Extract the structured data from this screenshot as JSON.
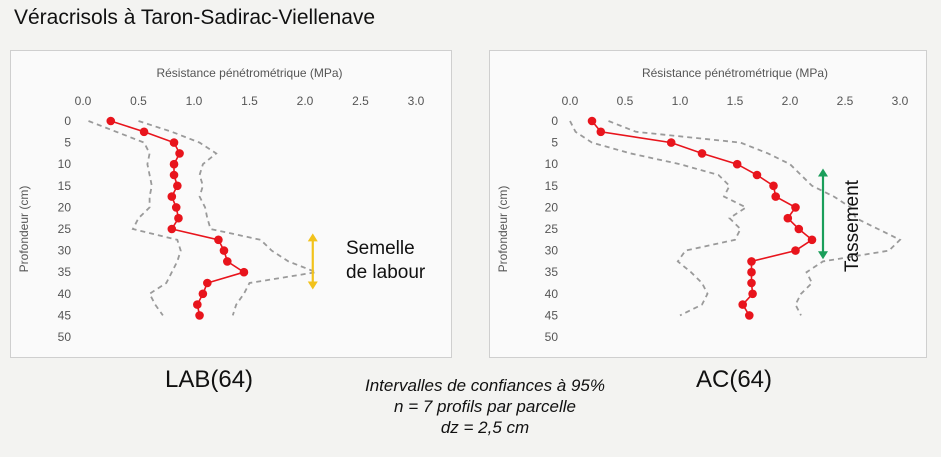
{
  "title": "Véracrisols à Taron-Sadirac-Viellenave",
  "note": {
    "line1": "Intervalles de confiances à 95%",
    "line2": "n = 7 profils par parcelle",
    "line3": "dz = 2,5 cm"
  },
  "colors": {
    "mean": "#e8141c",
    "ci": "#9a9a9a",
    "semelle_arrow": "#f2c21b",
    "tassement_arrow": "#1a9e5a"
  },
  "chart_data": [
    {
      "type": "line",
      "caption": "LAB(64)",
      "xlabel": "Résistance pénétrométrique (MPa)",
      "ylabel": "Profondeur (cm)",
      "x_axis_position": "top",
      "xlim": [
        0,
        3
      ],
      "ylim": [
        0,
        50
      ],
      "y_inverted": true,
      "x_ticks": [
        "0.0",
        "0.5",
        "1.0",
        "1.5",
        "2.0",
        "2.5",
        "3.0"
      ],
      "y_ticks": [
        "0",
        "5",
        "10",
        "15",
        "20",
        "25",
        "30",
        "35",
        "40",
        "45",
        "50"
      ],
      "grid": false,
      "series": [
        {
          "role": "mean",
          "style": "solid-dots",
          "points": [
            [
              0.25,
              0
            ],
            [
              0.55,
              2.5
            ],
            [
              0.82,
              5
            ],
            [
              0.87,
              7.5
            ],
            [
              0.82,
              10
            ],
            [
              0.82,
              12.5
            ],
            [
              0.85,
              15
            ],
            [
              0.8,
              17.5
            ],
            [
              0.84,
              20
            ],
            [
              0.86,
              22.5
            ],
            [
              0.8,
              25
            ],
            [
              1.22,
              27.5
            ],
            [
              1.27,
              30
            ],
            [
              1.3,
              32.5
            ],
            [
              1.45,
              35
            ],
            [
              1.12,
              37.5
            ],
            [
              1.08,
              40
            ],
            [
              1.03,
              42.5
            ],
            [
              1.05,
              45
            ]
          ]
        },
        {
          "role": "upper",
          "style": "dashed",
          "points": [
            [
              0.5,
              0
            ],
            [
              0.8,
              2.5
            ],
            [
              1.05,
              5
            ],
            [
              1.2,
              7.5
            ],
            [
              1.08,
              10
            ],
            [
              1.05,
              12.5
            ],
            [
              1.08,
              15
            ],
            [
              1.05,
              17.5
            ],
            [
              1.1,
              20
            ],
            [
              1.12,
              22.5
            ],
            [
              1.15,
              25
            ],
            [
              1.6,
              27.5
            ],
            [
              1.7,
              30
            ],
            [
              1.85,
              32.5
            ],
            [
              2.1,
              35
            ],
            [
              1.5,
              37.5
            ],
            [
              1.45,
              40
            ],
            [
              1.38,
              42.5
            ],
            [
              1.35,
              45
            ]
          ]
        },
        {
          "role": "lower",
          "style": "dashed",
          "points": [
            [
              0.05,
              0
            ],
            [
              0.3,
              2.5
            ],
            [
              0.55,
              5
            ],
            [
              0.6,
              7.5
            ],
            [
              0.58,
              10
            ],
            [
              0.6,
              12.5
            ],
            [
              0.62,
              15
            ],
            [
              0.6,
              17.5
            ],
            [
              0.6,
              20
            ],
            [
              0.5,
              22.5
            ],
            [
              0.45,
              25
            ],
            [
              0.85,
              27.5
            ],
            [
              0.88,
              30
            ],
            [
              0.85,
              32.5
            ],
            [
              0.8,
              35
            ],
            [
              0.75,
              37.5
            ],
            [
              0.6,
              40
            ],
            [
              0.65,
              42.5
            ],
            [
              0.72,
              45
            ]
          ]
        }
      ],
      "annotation": {
        "lines": [
          "Semelle",
          "de labour"
        ],
        "arrow_from_depth": 26,
        "arrow_to_depth": 39,
        "arrow_x": 2.07
      }
    },
    {
      "type": "line",
      "caption": "AC(64)",
      "xlabel": "Résistance pénétrométrique (MPa)",
      "ylabel": "Profondeur (cm)",
      "x_axis_position": "top",
      "xlim": [
        0,
        3
      ],
      "ylim": [
        0,
        50
      ],
      "y_inverted": true,
      "x_ticks": [
        "0.0",
        "0.5",
        "1.0",
        "1.5",
        "2.0",
        "2.5",
        "3.0"
      ],
      "y_ticks": [
        "0",
        "5",
        "10",
        "15",
        "20",
        "25",
        "30",
        "35",
        "40",
        "45",
        "50"
      ],
      "grid": false,
      "series": [
        {
          "role": "mean",
          "style": "solid-dots",
          "points": [
            [
              0.2,
              0
            ],
            [
              0.28,
              2.5
            ],
            [
              0.92,
              5
            ],
            [
              1.2,
              7.5
            ],
            [
              1.52,
              10
            ],
            [
              1.7,
              12.5
            ],
            [
              1.85,
              15
            ],
            [
              1.87,
              17.5
            ],
            [
              2.05,
              20
            ],
            [
              1.98,
              22.5
            ],
            [
              2.08,
              25
            ],
            [
              2.2,
              27.5
            ],
            [
              2.05,
              30
            ],
            [
              1.65,
              32.5
            ],
            [
              1.65,
              35
            ],
            [
              1.65,
              37.5
            ],
            [
              1.66,
              40
            ],
            [
              1.57,
              42.5
            ],
            [
              1.63,
              45
            ]
          ]
        },
        {
          "role": "upper",
          "style": "dashed",
          "points": [
            [
              0.35,
              0
            ],
            [
              0.6,
              2.5
            ],
            [
              1.55,
              5
            ],
            [
              1.8,
              7.5
            ],
            [
              2.0,
              10
            ],
            [
              2.1,
              12.5
            ],
            [
              2.2,
              15
            ],
            [
              2.4,
              17.5
            ],
            [
              2.55,
              20
            ],
            [
              2.6,
              22.5
            ],
            [
              2.8,
              25
            ],
            [
              3.0,
              27.5
            ],
            [
              2.9,
              30
            ],
            [
              2.3,
              32.5
            ],
            [
              2.15,
              35
            ],
            [
              2.2,
              37.5
            ],
            [
              2.1,
              40
            ],
            [
              2.05,
              42.5
            ],
            [
              2.1,
              45
            ]
          ]
        },
        {
          "role": "lower",
          "style": "dashed",
          "points": [
            [
              0.0,
              0
            ],
            [
              0.05,
              2.5
            ],
            [
              0.2,
              5
            ],
            [
              0.55,
              7.5
            ],
            [
              1.0,
              10
            ],
            [
              1.35,
              12.5
            ],
            [
              1.45,
              15
            ],
            [
              1.4,
              17.5
            ],
            [
              1.6,
              20
            ],
            [
              1.45,
              22.5
            ],
            [
              1.55,
              25
            ],
            [
              1.5,
              27.5
            ],
            [
              1.05,
              30
            ],
            [
              0.98,
              32.5
            ],
            [
              1.1,
              35
            ],
            [
              1.2,
              37.5
            ],
            [
              1.25,
              40
            ],
            [
              1.2,
              42.5
            ],
            [
              1.0,
              45
            ]
          ]
        }
      ],
      "annotation": {
        "lines": [
          "Tassement"
        ],
        "arrow_from_depth": 11,
        "arrow_to_depth": 32,
        "arrow_x": 2.3
      }
    }
  ]
}
